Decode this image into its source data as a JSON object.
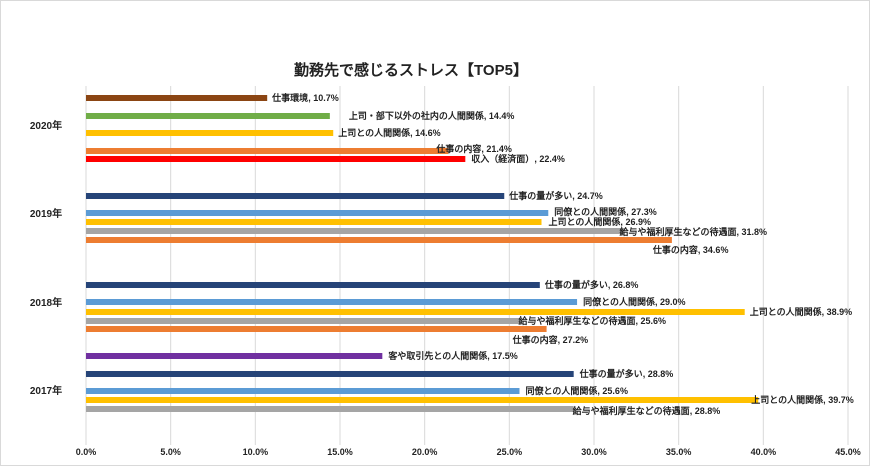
{
  "chart_data": {
    "type": "bar",
    "orientation": "horizontal",
    "title": "勤務先で感じるストレス【TOP5】",
    "xlim": [
      0,
      45
    ],
    "x_ticks": [
      "0.0%",
      "5.0%",
      "10.0%",
      "15.0%",
      "20.0%",
      "25.0%",
      "30.0%",
      "35.0%",
      "40.0%",
      "45.0%"
    ],
    "grid": true,
    "groups": [
      {
        "name": "2020年",
        "bars": [
          {
            "label": "仕事環境",
            "value": 10.7,
            "display": "10.7%",
            "color": "#8B4513"
          },
          {
            "label": "上司・部下以外の社内の人間関係",
            "value": 14.4,
            "display": "14.4%",
            "color": "#70AD47"
          },
          {
            "label": "上司との人間関係",
            "value": 14.6,
            "display": "14.6%",
            "color": "#FFC000"
          },
          {
            "label": "仕事の内容",
            "value": 21.4,
            "display": "21.4%",
            "color": "#ED7D31"
          },
          {
            "label": "収入（経済面）",
            "value": 22.4,
            "display": "22.4%",
            "color": "#FF0000"
          }
        ]
      },
      {
        "name": "2019年",
        "bars": [
          {
            "label": "仕事の量が多い",
            "value": 24.7,
            "display": "24.7%",
            "color": "#264478"
          },
          {
            "label": "同僚との人間関係",
            "value": 27.3,
            "display": "27.3%",
            "color": "#5B9BD5"
          },
          {
            "label": "上司との人間関係",
            "value": 26.9,
            "display": "26.9%",
            "color": "#FFC000"
          },
          {
            "label": "給与や福利厚生などの待遇面",
            "value": 31.8,
            "display": "31.8%",
            "color": "#A5A5A5"
          },
          {
            "label": "仕事の内容",
            "value": 34.6,
            "display": "34.6%",
            "color": "#ED7D31"
          }
        ]
      },
      {
        "name": "2018年",
        "bars": [
          {
            "label": "仕事の量が多い",
            "value": 26.8,
            "display": "26.8%",
            "color": "#264478"
          },
          {
            "label": "同僚との人間関係",
            "value": 29.0,
            "display": "29.0%",
            "color": "#5B9BD5"
          },
          {
            "label": "上司との人間関係",
            "value": 38.9,
            "display": "38.9%",
            "color": "#FFC000"
          },
          {
            "label": "給与や福利厚生などの待遇面",
            "value": 25.6,
            "display": "25.6%",
            "color": "#A5A5A5"
          },
          {
            "label": "仕事の内容",
            "value": 27.2,
            "display": "27.2%",
            "color": "#ED7D31"
          }
        ]
      },
      {
        "name": "2017年",
        "bars": [
          {
            "label": "客や取引先との人間関係",
            "value": 17.5,
            "display": "17.5%",
            "color": "#7030A0"
          },
          {
            "label": "仕事の量が多い",
            "value": 28.8,
            "display": "28.8%",
            "color": "#264478"
          },
          {
            "label": "同僚との人間関係",
            "value": 25.6,
            "display": "25.6%",
            "color": "#5B9BD5"
          },
          {
            "label": "上司との人間関係",
            "value": 39.7,
            "display": "39.7%",
            "color": "#FFC000"
          },
          {
            "label": "給与や福利厚生などの待遇面",
            "value": 28.8,
            "display": "28.8%",
            "color": "#A5A5A5"
          }
        ]
      }
    ]
  }
}
